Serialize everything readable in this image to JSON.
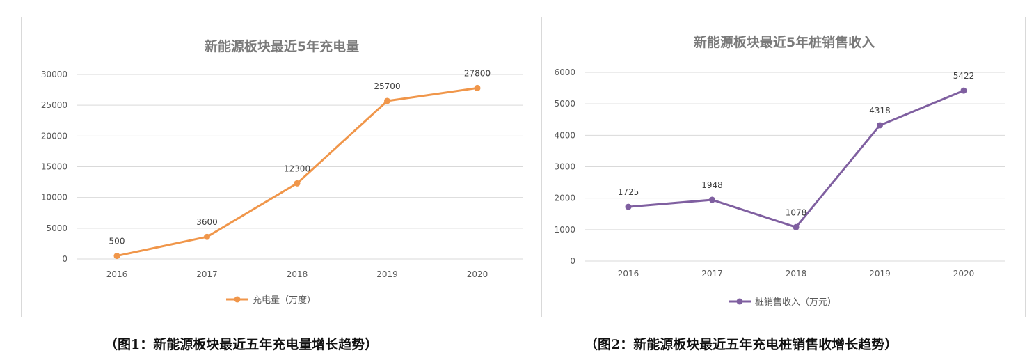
{
  "chart_data": [
    {
      "type": "line",
      "title": "新能源板块最近5年充电量",
      "categories": [
        "2016",
        "2017",
        "2018",
        "2019",
        "2020"
      ],
      "series": [
        {
          "name": "充电量（万度）",
          "values": [
            500,
            3600,
            12300,
            25700,
            27800
          ]
        }
      ],
      "yticks": [
        "0",
        "5000",
        "10000",
        "15000",
        "20000",
        "25000",
        "30000"
      ],
      "ylim": [
        0,
        30000
      ],
      "grid": true,
      "legend": "bottom",
      "color": "#f0964a"
    },
    {
      "type": "line",
      "title": "新能源板块最近5年桩销售收入",
      "categories": [
        "2016",
        "2017",
        "2018",
        "2019",
        "2020"
      ],
      "series": [
        {
          "name": "桩销售收入（万元）",
          "values": [
            1725,
            1948,
            1078,
            4318,
            5422
          ]
        }
      ],
      "yticks": [
        "0",
        "1000",
        "2000",
        "3000",
        "4000",
        "5000",
        "6000"
      ],
      "ylim": [
        0,
        6000
      ],
      "grid": true,
      "legend": "bottom",
      "color": "#7f5fa0"
    }
  ],
  "captions": [
    "（图1：新能源板块最近五年充电量增长趋势）",
    "（图2：新能源板块最近五年充电桩销售收增长趋势）"
  ]
}
